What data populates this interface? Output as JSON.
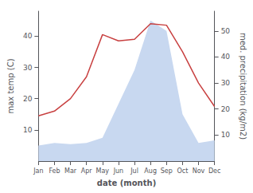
{
  "chart_data": {
    "type": "line",
    "categories": [
      "Jan",
      "Feb",
      "Mar",
      "Apr",
      "May",
      "Jun",
      "Jul",
      "Aug",
      "Sep",
      "Oct",
      "Nov",
      "Dec"
    ],
    "xlabel": "date (month)",
    "ylabel": "max temp (C)",
    "y2label": "med. precipitation (kg/m2)",
    "series": [
      {
        "type": "area",
        "axis": "y2",
        "color": "#c8d8f0",
        "values": [
          6.0,
          7.0,
          6.5,
          7.0,
          9.0,
          22.0,
          35.0,
          54.0,
          50.0,
          18.0,
          7.0,
          8.0
        ]
      },
      {
        "type": "line",
        "color": "#c84040",
        "values": [
          14.5,
          16.0,
          20.0,
          27.0,
          40.5,
          38.5,
          39.0,
          44.0,
          43.5,
          35.0,
          25.0,
          17.5
        ]
      }
    ],
    "ylim": [
      0,
      48
    ],
    "yticks": [
      10,
      20,
      30,
      40
    ],
    "y2lim": [
      0,
      57.6
    ],
    "y2ticks": [
      10,
      20,
      30,
      40,
      50
    ],
    "grid": false
  }
}
